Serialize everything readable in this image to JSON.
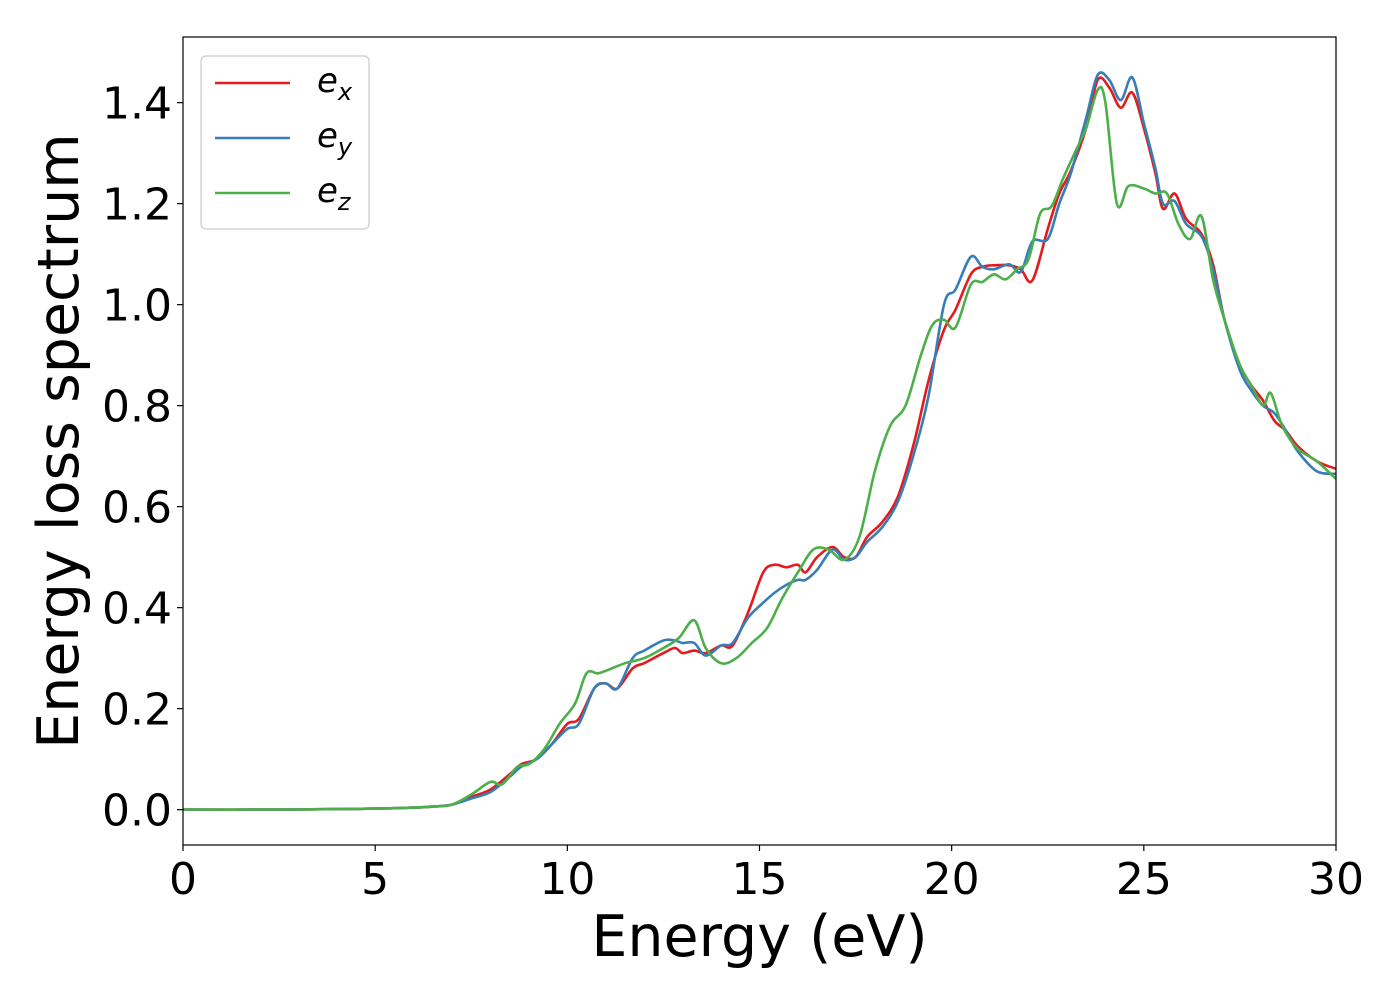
{
  "chart_data": {
    "type": "line",
    "xlabel": "Energy (eV)",
    "ylabel": "Energy loss spectrum",
    "xlim": [
      0,
      30
    ],
    "ylim": [
      -0.07,
      1.53
    ],
    "xticks": [
      0,
      5,
      10,
      15,
      20,
      25,
      30
    ],
    "xtick_labels": [
      "0",
      "5",
      "10",
      "15",
      "20",
      "25",
      "30"
    ],
    "yticks": [
      0.0,
      0.2,
      0.4,
      0.6,
      0.8,
      1.0,
      1.2,
      1.4
    ],
    "ytick_labels": [
      "0.0",
      "0.2",
      "0.4",
      "0.6",
      "0.8",
      "1.0",
      "1.2",
      "1.4"
    ],
    "grid": false,
    "legend_position": "top-left",
    "series": [
      {
        "name": "e_x",
        "label_main": "e",
        "label_sub": "x",
        "color": "#e41a1c",
        "points": [
          [
            0,
            0.0
          ],
          [
            2,
            0.0
          ],
          [
            4,
            0.001
          ],
          [
            5,
            0.002
          ],
          [
            6,
            0.004
          ],
          [
            6.5,
            0.006
          ],
          [
            7,
            0.01
          ],
          [
            7.5,
            0.025
          ],
          [
            8,
            0.04
          ],
          [
            8.5,
            0.07
          ],
          [
            8.8,
            0.09
          ],
          [
            9.2,
            0.1
          ],
          [
            9.6,
            0.13
          ],
          [
            10,
            0.17
          ],
          [
            10.3,
            0.18
          ],
          [
            10.7,
            0.24
          ],
          [
            11,
            0.25
          ],
          [
            11.3,
            0.24
          ],
          [
            11.7,
            0.28
          ],
          [
            12,
            0.29
          ],
          [
            12.5,
            0.31
          ],
          [
            12.8,
            0.32
          ],
          [
            13,
            0.31
          ],
          [
            13.3,
            0.315
          ],
          [
            13.6,
            0.31
          ],
          [
            14,
            0.325
          ],
          [
            14.3,
            0.325
          ],
          [
            14.7,
            0.39
          ],
          [
            15.1,
            0.47
          ],
          [
            15.4,
            0.485
          ],
          [
            15.7,
            0.48
          ],
          [
            16,
            0.485
          ],
          [
            16.2,
            0.47
          ],
          [
            16.5,
            0.5
          ],
          [
            16.9,
            0.52
          ],
          [
            17.2,
            0.5
          ],
          [
            17.5,
            0.5
          ],
          [
            17.8,
            0.54
          ],
          [
            18.2,
            0.57
          ],
          [
            18.6,
            0.62
          ],
          [
            19,
            0.72
          ],
          [
            19.4,
            0.85
          ],
          [
            19.8,
            0.95
          ],
          [
            20.1,
            0.99
          ],
          [
            20.5,
            1.06
          ],
          [
            20.8,
            1.075
          ],
          [
            21.1,
            1.078
          ],
          [
            21.5,
            1.078
          ],
          [
            21.8,
            1.07
          ],
          [
            22.1,
            1.048
          ],
          [
            22.5,
            1.15
          ],
          [
            22.8,
            1.22
          ],
          [
            23.1,
            1.265
          ],
          [
            23.5,
            1.35
          ],
          [
            23.8,
            1.445
          ],
          [
            24.1,
            1.43
          ],
          [
            24.4,
            1.39
          ],
          [
            24.7,
            1.42
          ],
          [
            25,
            1.35
          ],
          [
            25.3,
            1.26
          ],
          [
            25.5,
            1.19
          ],
          [
            25.8,
            1.22
          ],
          [
            26.1,
            1.17
          ],
          [
            26.5,
            1.14
          ],
          [
            26.8,
            1.08
          ],
          [
            27.1,
            0.97
          ],
          [
            27.5,
            0.88
          ],
          [
            27.8,
            0.84
          ],
          [
            28.1,
            0.81
          ],
          [
            28.4,
            0.77
          ],
          [
            28.7,
            0.75
          ],
          [
            29,
            0.72
          ],
          [
            29.5,
            0.69
          ],
          [
            30,
            0.675
          ]
        ]
      },
      {
        "name": "e_y",
        "label_main": "e",
        "label_sub": "y",
        "color": "#377eb8",
        "points": [
          [
            0,
            0.0
          ],
          [
            2,
            0.0
          ],
          [
            4,
            0.001
          ],
          [
            5,
            0.002
          ],
          [
            6,
            0.004
          ],
          [
            6.5,
            0.006
          ],
          [
            7,
            0.01
          ],
          [
            7.5,
            0.022
          ],
          [
            8,
            0.035
          ],
          [
            8.5,
            0.065
          ],
          [
            8.8,
            0.085
          ],
          [
            9.2,
            0.1
          ],
          [
            9.6,
            0.13
          ],
          [
            10,
            0.16
          ],
          [
            10.3,
            0.17
          ],
          [
            10.7,
            0.24
          ],
          [
            11,
            0.25
          ],
          [
            11.3,
            0.24
          ],
          [
            11.7,
            0.3
          ],
          [
            12,
            0.315
          ],
          [
            12.5,
            0.335
          ],
          [
            12.8,
            0.335
          ],
          [
            13,
            0.33
          ],
          [
            13.3,
            0.33
          ],
          [
            13.6,
            0.305
          ],
          [
            14,
            0.325
          ],
          [
            14.3,
            0.33
          ],
          [
            14.7,
            0.38
          ],
          [
            15.1,
            0.41
          ],
          [
            15.4,
            0.43
          ],
          [
            15.7,
            0.445
          ],
          [
            16,
            0.455
          ],
          [
            16.2,
            0.455
          ],
          [
            16.5,
            0.475
          ],
          [
            16.9,
            0.515
          ],
          [
            17.2,
            0.495
          ],
          [
            17.5,
            0.5
          ],
          [
            17.8,
            0.53
          ],
          [
            18.2,
            0.56
          ],
          [
            18.6,
            0.61
          ],
          [
            19,
            0.7
          ],
          [
            19.4,
            0.82
          ],
          [
            19.8,
            1.0
          ],
          [
            20.1,
            1.03
          ],
          [
            20.5,
            1.095
          ],
          [
            20.8,
            1.075
          ],
          [
            21.1,
            1.07
          ],
          [
            21.5,
            1.08
          ],
          [
            21.8,
            1.065
          ],
          [
            22.1,
            1.125
          ],
          [
            22.5,
            1.13
          ],
          [
            22.8,
            1.2
          ],
          [
            23.1,
            1.26
          ],
          [
            23.5,
            1.37
          ],
          [
            23.8,
            1.455
          ],
          [
            24.1,
            1.445
          ],
          [
            24.4,
            1.405
          ],
          [
            24.7,
            1.45
          ],
          [
            25,
            1.36
          ],
          [
            25.3,
            1.27
          ],
          [
            25.5,
            1.2
          ],
          [
            25.8,
            1.205
          ],
          [
            26.1,
            1.16
          ],
          [
            26.5,
            1.135
          ],
          [
            26.8,
            1.07
          ],
          [
            27.1,
            0.97
          ],
          [
            27.5,
            0.87
          ],
          [
            27.8,
            0.83
          ],
          [
            28.1,
            0.8
          ],
          [
            28.4,
            0.785
          ],
          [
            28.7,
            0.75
          ],
          [
            29,
            0.71
          ],
          [
            29.5,
            0.67
          ],
          [
            30,
            0.665
          ]
        ]
      },
      {
        "name": "e_z",
        "label_main": "e",
        "label_sub": "z",
        "color": "#4daf4a",
        "points": [
          [
            0,
            0.0
          ],
          [
            2,
            0.0
          ],
          [
            4,
            0.001
          ],
          [
            5,
            0.002
          ],
          [
            6,
            0.004
          ],
          [
            6.5,
            0.006
          ],
          [
            7,
            0.01
          ],
          [
            7.5,
            0.03
          ],
          [
            8,
            0.055
          ],
          [
            8.3,
            0.05
          ],
          [
            8.7,
            0.085
          ],
          [
            9,
            0.09
          ],
          [
            9.4,
            0.12
          ],
          [
            9.8,
            0.17
          ],
          [
            10.2,
            0.21
          ],
          [
            10.5,
            0.27
          ],
          [
            10.8,
            0.27
          ],
          [
            11.1,
            0.278
          ],
          [
            11.5,
            0.29
          ],
          [
            12,
            0.3
          ],
          [
            12.5,
            0.32
          ],
          [
            12.9,
            0.34
          ],
          [
            13.3,
            0.375
          ],
          [
            13.6,
            0.32
          ],
          [
            14,
            0.29
          ],
          [
            14.4,
            0.3
          ],
          [
            14.8,
            0.33
          ],
          [
            15.2,
            0.36
          ],
          [
            15.6,
            0.42
          ],
          [
            16,
            0.47
          ],
          [
            16.4,
            0.515
          ],
          [
            16.8,
            0.515
          ],
          [
            17.2,
            0.495
          ],
          [
            17.6,
            0.54
          ],
          [
            18,
            0.67
          ],
          [
            18.4,
            0.76
          ],
          [
            18.8,
            0.8
          ],
          [
            19.2,
            0.9
          ],
          [
            19.5,
            0.96
          ],
          [
            19.8,
            0.97
          ],
          [
            20.1,
            0.955
          ],
          [
            20.5,
            1.04
          ],
          [
            20.8,
            1.045
          ],
          [
            21.1,
            1.06
          ],
          [
            21.4,
            1.05
          ],
          [
            21.7,
            1.07
          ],
          [
            22,
            1.09
          ],
          [
            22.3,
            1.18
          ],
          [
            22.6,
            1.195
          ],
          [
            22.9,
            1.25
          ],
          [
            23.2,
            1.3
          ],
          [
            23.5,
            1.35
          ],
          [
            23.8,
            1.425
          ],
          [
            24,
            1.4
          ],
          [
            24.3,
            1.2
          ],
          [
            24.6,
            1.235
          ],
          [
            25,
            1.23
          ],
          [
            25.3,
            1.22
          ],
          [
            25.6,
            1.22
          ],
          [
            25.9,
            1.16
          ],
          [
            26.2,
            1.13
          ],
          [
            26.5,
            1.175
          ],
          [
            26.8,
            1.05
          ],
          [
            27.1,
            0.97
          ],
          [
            27.5,
            0.88
          ],
          [
            27.8,
            0.84
          ],
          [
            28.1,
            0.8
          ],
          [
            28.3,
            0.825
          ],
          [
            28.6,
            0.76
          ],
          [
            29,
            0.715
          ],
          [
            29.5,
            0.69
          ],
          [
            30,
            0.655
          ]
        ]
      }
    ]
  }
}
